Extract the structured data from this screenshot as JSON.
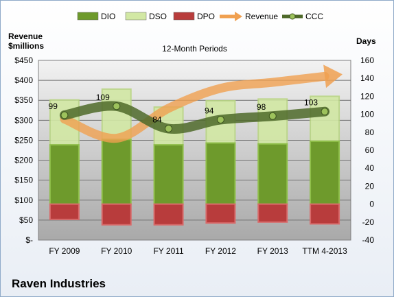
{
  "chart_data": {
    "type": "bar",
    "title": "12-Month Periods",
    "left_axis_label": [
      "Revenue",
      "$millions"
    ],
    "right_axis_label": "Days",
    "categories": [
      "FY 2009",
      "FY 2010",
      "FY 2011",
      "FY 2012",
      "FY 2013",
      "TTM 4-2013"
    ],
    "left_ylim": [
      0,
      450
    ],
    "left_ticks": [
      "$-",
      "$50",
      "$100",
      "$150",
      "$200",
      "$250",
      "$300",
      "$350",
      "$400",
      "$450"
    ],
    "right_ylim": [
      -40,
      160
    ],
    "right_ticks": [
      "-40",
      "-20",
      "0",
      "20",
      "40",
      "60",
      "80",
      "100",
      "120",
      "140",
      "160"
    ],
    "grid": true,
    "legend_position": "top",
    "series": [
      {
        "name": "DIO",
        "axis": "right",
        "kind": "stacked-bar",
        "color": "#6e9a2c",
        "values": [
          66,
          72,
          66,
          68,
          67,
          70
        ]
      },
      {
        "name": "DSO",
        "axis": "right",
        "kind": "stacked-bar",
        "color": "#d2e8a4",
        "values": [
          50,
          56,
          42,
          47,
          50,
          50
        ]
      },
      {
        "name": "DPO",
        "axis": "right",
        "kind": "bar-below-zero",
        "color": "#b83c3c",
        "values": [
          -17,
          -23,
          -23,
          -21,
          -20,
          -22
        ]
      },
      {
        "name": "Revenue",
        "axis": "left",
        "kind": "arrow",
        "color": "#f0a050",
        "values": [
          303,
          255,
          330,
          380,
          395,
          410
        ]
      },
      {
        "name": "CCC",
        "axis": "right",
        "kind": "line",
        "color": "#4f6a2a",
        "values": [
          99,
          109,
          84,
          94,
          98,
          103
        ]
      }
    ],
    "data_labels": [
      "99",
      "109",
      "84",
      "94",
      "98",
      "103"
    ]
  },
  "company_name": "Raven Industries"
}
